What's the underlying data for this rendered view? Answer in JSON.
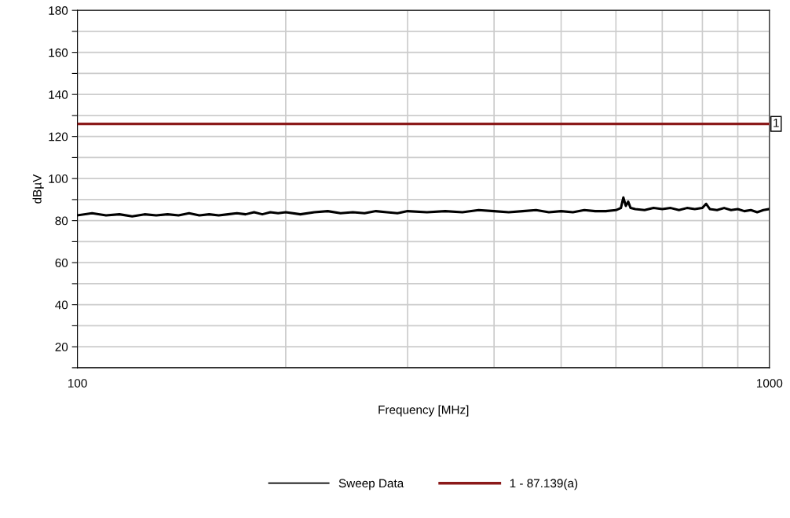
{
  "chart_data": {
    "type": "line",
    "xlabel": "Frequency [MHz]",
    "ylabel": "dBµV",
    "log": "x",
    "grid": true,
    "legend": "bottom",
    "marker": "none",
    "line_style": "solid",
    "xlim": [
      100,
      1000
    ],
    "ylim": [
      10,
      180
    ],
    "xticks": [
      100,
      {
        "value": 200,
        "label": null
      },
      {
        "value": 300,
        "label": null
      },
      {
        "value": 400,
        "label": null
      },
      {
        "value": 500,
        "label": null
      },
      {
        "value": 600,
        "label": null
      },
      {
        "value": 700,
        "label": null
      },
      {
        "value": 800,
        "label": null
      },
      {
        "value": 900,
        "label": null
      },
      1000
    ],
    "yticks": [
      {
        "value": 10,
        "label": null
      },
      20,
      {
        "value": 30,
        "label": null
      },
      40,
      {
        "value": 50,
        "label": null
      },
      60,
      {
        "value": 70,
        "label": null
      },
      80,
      {
        "value": 90,
        "label": null
      },
      100,
      {
        "value": 110,
        "label": null
      },
      120,
      {
        "value": 130,
        "label": null
      },
      140,
      {
        "value": 150,
        "label": null
      },
      160,
      {
        "value": 170,
        "label": null
      },
      180
    ],
    "series": [
      {
        "name": "Sweep Data",
        "color": "#000000",
        "x": [
          100,
          105,
          110,
          115,
          120,
          125,
          130,
          135,
          140,
          145,
          150,
          155,
          160,
          165,
          170,
          175,
          180,
          185,
          190,
          195,
          200,
          210,
          220,
          230,
          240,
          250,
          260,
          270,
          280,
          290,
          300,
          320,
          340,
          360,
          380,
          400,
          420,
          440,
          460,
          480,
          500,
          520,
          540,
          560,
          580,
          600,
          610,
          615,
          620,
          625,
          630,
          640,
          660,
          680,
          700,
          720,
          740,
          760,
          780,
          800,
          810,
          820,
          840,
          860,
          880,
          900,
          920,
          940,
          960,
          980,
          1000
        ],
        "values": [
          82.5,
          83.5,
          82.5,
          83,
          82,
          83,
          82.5,
          83,
          82.5,
          83.5,
          82.5,
          83,
          82.5,
          83,
          83.5,
          83,
          84,
          83,
          84,
          83.5,
          84,
          83,
          84,
          84.5,
          83.5,
          84,
          83.5,
          84.5,
          84,
          83.5,
          84.5,
          84,
          84.5,
          84,
          85,
          84.5,
          84,
          84.5,
          85,
          84,
          84.5,
          84,
          85,
          84.5,
          84.5,
          85,
          86,
          91,
          87,
          89,
          86,
          85.5,
          85,
          86,
          85.5,
          86,
          85,
          86,
          85.5,
          86,
          88,
          85.5,
          85,
          86,
          85,
          85.5,
          84.5,
          85,
          84,
          85,
          85.5
        ]
      },
      {
        "name": "1 - 87.139(a)",
        "color": "#8b1a1a",
        "x": [
          100,
          1000
        ],
        "values": [
          126,
          126
        ]
      }
    ],
    "annotations": [
      {
        "text": "1",
        "x": 1000,
        "y": 126
      }
    ]
  }
}
